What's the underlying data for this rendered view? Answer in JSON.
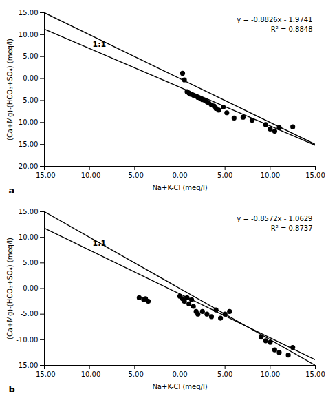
{
  "chart_data": [
    {
      "type": "scatter",
      "xlabel": "Na+K-Cl (meq/l)",
      "ylabel": "(Ca+Mg)-(HCO₃+SO₄) (meq/l)",
      "panel_label": "a",
      "annotations": [
        "y = -0.8826x - 1.9741",
        "R² = 0.8848"
      ],
      "grid": false,
      "series": [
        {
          "type": "line",
          "color": "black",
          "label": "1:1",
          "x": [
            -15,
            15
          ],
          "values": [
            15,
            -15
          ]
        },
        {
          "type": "line",
          "color": "black",
          "x": [
            -15,
            15
          ],
          "values": [
            11.2649,
            -15.2131
          ]
        },
        {
          "type": "scatter",
          "color": "black",
          "marker": "circle",
          "x": [
            0.3,
            0.5,
            0.8,
            1.0,
            1.2,
            1.5,
            1.8,
            2.0,
            2.3,
            2.5,
            2.8,
            3.0,
            3.2,
            3.5,
            3.8,
            4.0,
            4.3,
            4.8,
            5.2,
            6.0,
            7.0,
            8.0,
            9.5,
            10.0,
            10.5,
            11.0,
            12.5
          ],
          "values": [
            1.2,
            -0.3,
            -3.0,
            -3.3,
            -3.6,
            -3.8,
            -4.0,
            -4.3,
            -4.6,
            -4.8,
            -5.0,
            -5.3,
            -5.6,
            -6.0,
            -6.3,
            -6.8,
            -7.2,
            -6.5,
            -7.8,
            -9.0,
            -8.8,
            -9.5,
            -10.5,
            -11.5,
            -12.0,
            -11.2,
            -11.0
          ]
        }
      ],
      "xlim": [
        -15,
        15
      ],
      "ylim": [
        -20,
        15
      ],
      "xticks": [
        {
          "value": -15,
          "label": "-15.00"
        },
        {
          "value": -10,
          "label": "-10.00"
        },
        {
          "value": -5,
          "label": "-5.00"
        },
        {
          "value": 0,
          "label": "0.00"
        },
        {
          "value": 5,
          "label": "5.00"
        },
        {
          "value": 10,
          "label": "10.00"
        },
        {
          "value": 15,
          "label": "15.00"
        }
      ],
      "yticks": [
        {
          "value": -20,
          "label": "-20.00"
        },
        {
          "value": -15,
          "label": "-15.00"
        },
        {
          "value": -10,
          "label": "-10.00"
        },
        {
          "value": -5,
          "label": "-5.00"
        },
        {
          "value": 0,
          "label": "0.00"
        },
        {
          "value": 5,
          "label": "5.00"
        },
        {
          "value": 10,
          "label": "10.00"
        },
        {
          "value": 15,
          "label": "15.00"
        }
      ]
    },
    {
      "type": "scatter",
      "xlabel": "Na+K-Cl (meq/l)",
      "ylabel": "(Ca+Mg)-(HCO₃+SO₄) (meq/l)",
      "panel_label": "b",
      "annotations": [
        "y = -0.8572x - 1.0629",
        "R² = 0.8737"
      ],
      "grid": false,
      "series": [
        {
          "type": "line",
          "color": "black",
          "label": "1:1",
          "x": [
            -15,
            15
          ],
          "values": [
            15,
            -15
          ]
        },
        {
          "type": "line",
          "color": "black",
          "x": [
            -15,
            15
          ],
          "values": [
            11.7951,
            -13.9209
          ]
        },
        {
          "type": "scatter",
          "color": "black",
          "marker": "circle",
          "x": [
            -4.5,
            -4.0,
            -3.8,
            -3.5,
            0.0,
            0.3,
            0.5,
            0.8,
            1.0,
            1.3,
            1.5,
            1.8,
            2.0,
            2.5,
            3.0,
            3.5,
            4.0,
            4.5,
            5.0,
            5.5,
            9.0,
            9.5,
            10.0,
            10.5,
            11.0,
            12.0,
            12.5
          ],
          "values": [
            -1.8,
            -2.2,
            -2.0,
            -2.5,
            -1.5,
            -2.0,
            -2.5,
            -1.8,
            -3.0,
            -2.2,
            -3.5,
            -4.5,
            -5.0,
            -4.5,
            -5.0,
            -5.5,
            -4.2,
            -5.8,
            -5.0,
            -4.5,
            -9.5,
            -10.2,
            -10.5,
            -12.0,
            -12.5,
            -13.0,
            -11.5
          ]
        }
      ],
      "xlim": [
        -15,
        15
      ],
      "ylim": [
        -15,
        15
      ],
      "xticks": [
        {
          "value": -15,
          "label": "-15.00"
        },
        {
          "value": -10,
          "label": "-10.00"
        },
        {
          "value": -5,
          "label": "-5.00"
        },
        {
          "value": 0,
          "label": "0.00"
        },
        {
          "value": 5,
          "label": "5.00"
        },
        {
          "value": 10,
          "label": "10.00"
        },
        {
          "value": 15,
          "label": "15.00"
        }
      ],
      "yticks": [
        {
          "value": -15,
          "label": "-15.00"
        },
        {
          "value": -10,
          "label": "-10.00"
        },
        {
          "value": -5,
          "label": "-5.00"
        },
        {
          "value": 0,
          "label": "0.00"
        },
        {
          "value": 5,
          "label": "5.00"
        },
        {
          "value": 10,
          "label": "10.00"
        },
        {
          "value": 15,
          "label": "15.00"
        }
      ]
    }
  ]
}
